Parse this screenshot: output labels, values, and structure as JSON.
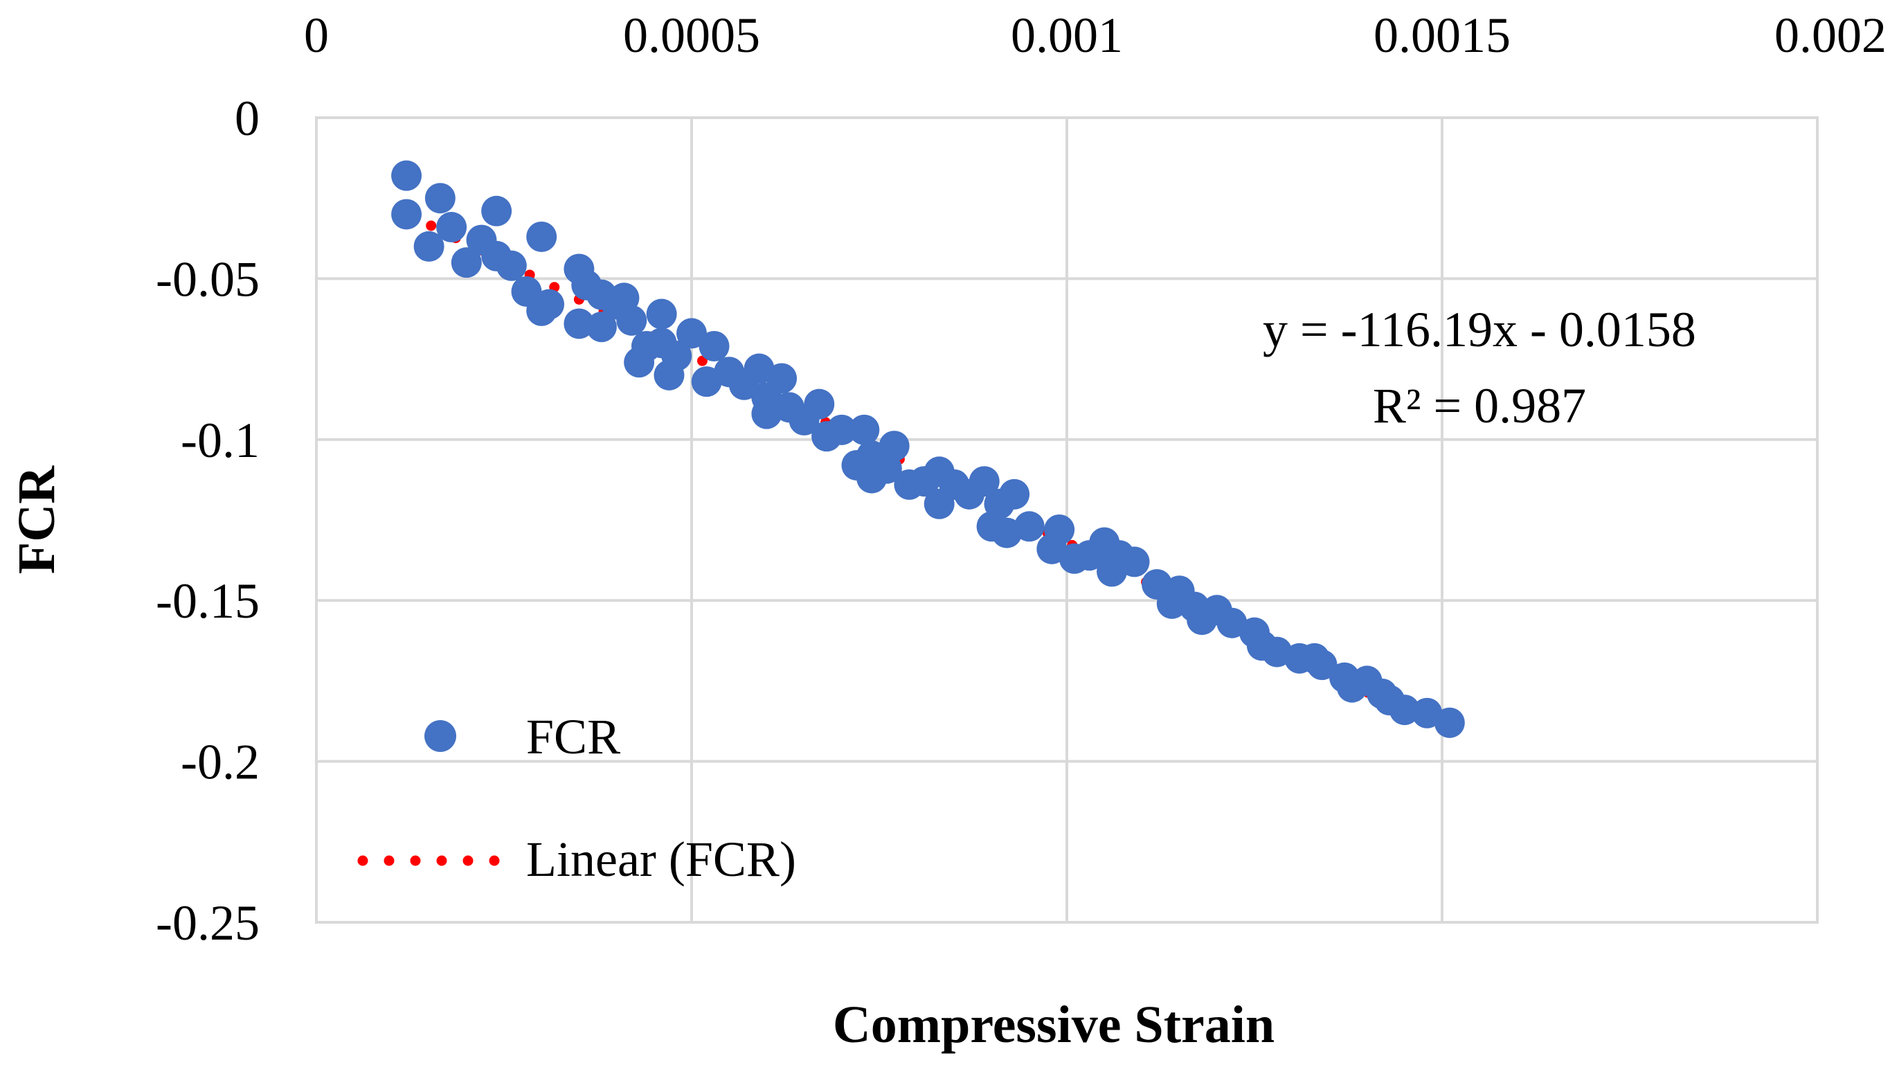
{
  "chart_data": {
    "type": "scatter",
    "title": "",
    "xlabel": "Compressive Strain",
    "ylabel": "FCR",
    "xlim": [
      0,
      0.002
    ],
    "ylim": [
      -0.25,
      0
    ],
    "x_ticks": [
      "0",
      "0.0005",
      "0.001",
      "0.0015",
      "0.002"
    ],
    "y_ticks": [
      "0",
      "-0.05",
      "-0.1",
      "-0.15",
      "-0.2",
      "-0.25"
    ],
    "x_axis_position": "top",
    "grid": true,
    "legend_position": "bottom-left",
    "colors": {
      "points": "#4472c4",
      "trendline": "#ff0000",
      "grid": "#d9d9d9"
    },
    "series": [
      {
        "name": "FCR",
        "marker": "circle",
        "points": [
          [
            0.00012,
            -0.018
          ],
          [
            0.00012,
            -0.03
          ],
          [
            0.00015,
            -0.04
          ],
          [
            0.000165,
            -0.025
          ],
          [
            0.00018,
            -0.034
          ],
          [
            0.0002,
            -0.045
          ],
          [
            0.00022,
            -0.038
          ],
          [
            0.00024,
            -0.029
          ],
          [
            0.00024,
            -0.043
          ],
          [
            0.00026,
            -0.046
          ],
          [
            0.00028,
            -0.054
          ],
          [
            0.0003,
            -0.037
          ],
          [
            0.0003,
            -0.06
          ],
          [
            0.00031,
            -0.058
          ],
          [
            0.00035,
            -0.047
          ],
          [
            0.00035,
            -0.064
          ],
          [
            0.00036,
            -0.052
          ],
          [
            0.00038,
            -0.055
          ],
          [
            0.00038,
            -0.065
          ],
          [
            0.0004,
            -0.058
          ],
          [
            0.00041,
            -0.056
          ],
          [
            0.00042,
            -0.063
          ],
          [
            0.00043,
            -0.076
          ],
          [
            0.00044,
            -0.071
          ],
          [
            0.00046,
            -0.061
          ],
          [
            0.00046,
            -0.07
          ],
          [
            0.00047,
            -0.08
          ],
          [
            0.00048,
            -0.074
          ],
          [
            0.0005,
            -0.067
          ],
          [
            0.00052,
            -0.082
          ],
          [
            0.00053,
            -0.071
          ],
          [
            0.00055,
            -0.079
          ],
          [
            0.00057,
            -0.083
          ],
          [
            0.00059,
            -0.078
          ],
          [
            0.0006,
            -0.087
          ],
          [
            0.0006,
            -0.092
          ],
          [
            0.00062,
            -0.081
          ],
          [
            0.00063,
            -0.09
          ],
          [
            0.00065,
            -0.094
          ],
          [
            0.00067,
            -0.089
          ],
          [
            0.00068,
            -0.099
          ],
          [
            0.0007,
            -0.097
          ],
          [
            0.00072,
            -0.108
          ],
          [
            0.00073,
            -0.097
          ],
          [
            0.00074,
            -0.105
          ],
          [
            0.00074,
            -0.112
          ],
          [
            0.00076,
            -0.109
          ],
          [
            0.00077,
            -0.102
          ],
          [
            0.00079,
            -0.114
          ],
          [
            0.00081,
            -0.113
          ],
          [
            0.00083,
            -0.11
          ],
          [
            0.00083,
            -0.12
          ],
          [
            0.00085,
            -0.114
          ],
          [
            0.00087,
            -0.117
          ],
          [
            0.00089,
            -0.113
          ],
          [
            0.0009,
            -0.127
          ],
          [
            0.00091,
            -0.12
          ],
          [
            0.00092,
            -0.129
          ],
          [
            0.00093,
            -0.117
          ],
          [
            0.00095,
            -0.127
          ],
          [
            0.00098,
            -0.134
          ],
          [
            0.00099,
            -0.128
          ],
          [
            0.00101,
            -0.137
          ],
          [
            0.00103,
            -0.136
          ],
          [
            0.00105,
            -0.132
          ],
          [
            0.00106,
            -0.141
          ],
          [
            0.00107,
            -0.136
          ],
          [
            0.00109,
            -0.138
          ],
          [
            0.00112,
            -0.145
          ],
          [
            0.00114,
            -0.151
          ],
          [
            0.00115,
            -0.147
          ],
          [
            0.00117,
            -0.152
          ],
          [
            0.00118,
            -0.156
          ],
          [
            0.0012,
            -0.153
          ],
          [
            0.00122,
            -0.157
          ],
          [
            0.00125,
            -0.16
          ],
          [
            0.00126,
            -0.164
          ],
          [
            0.00128,
            -0.166
          ],
          [
            0.00131,
            -0.168
          ],
          [
            0.00133,
            -0.168
          ],
          [
            0.00134,
            -0.17
          ],
          [
            0.00137,
            -0.174
          ],
          [
            0.00138,
            -0.177
          ],
          [
            0.0014,
            -0.175
          ],
          [
            0.00142,
            -0.179
          ],
          [
            0.00143,
            -0.181
          ],
          [
            0.00145,
            -0.184
          ],
          [
            0.00148,
            -0.185
          ],
          [
            0.00151,
            -0.188
          ]
        ]
      }
    ],
    "trendline": {
      "name": "Linear (FCR)",
      "type": "linear",
      "slope": -116.19,
      "intercept": -0.0158,
      "x_range": [
        0.00012,
        0.0015
      ],
      "style": "dotted"
    },
    "annotations": [
      "y = -116.19x - 0.0158",
      "R² = 0.987"
    ]
  }
}
